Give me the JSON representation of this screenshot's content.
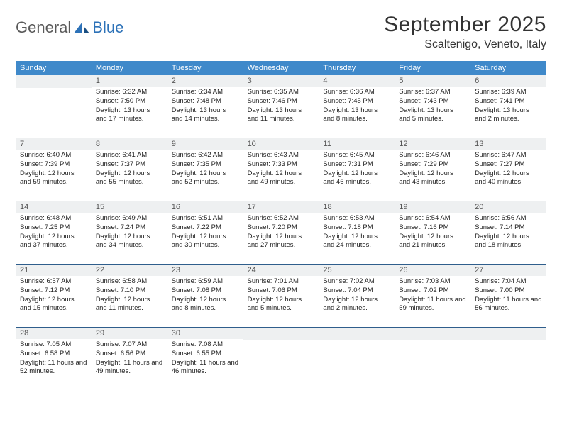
{
  "logo": {
    "text1": "General",
    "text2": "Blue"
  },
  "title": "September 2025",
  "location": "Scaltenigo, Veneto, Italy",
  "weekdays": [
    "Sunday",
    "Monday",
    "Tuesday",
    "Wednesday",
    "Thursday",
    "Friday",
    "Saturday"
  ],
  "colors": {
    "header_bg": "#3f89ca",
    "header_text": "#ffffff",
    "daynum_bg": "#eef0f1",
    "week_border": "#2f5e8c",
    "logo_general": "#5a5a5a",
    "logo_blue": "#2d72b8",
    "text": "#333333",
    "background": "#ffffff"
  },
  "fonts": {
    "title_size": 30,
    "location_size": 16,
    "weekday_size": 11,
    "daynum_size": 11,
    "body_size": 9.5
  },
  "weeks": [
    [
      null,
      {
        "n": "1",
        "sunrise": "Sunrise: 6:32 AM",
        "sunset": "Sunset: 7:50 PM",
        "daylight": "Daylight: 13 hours and 17 minutes."
      },
      {
        "n": "2",
        "sunrise": "Sunrise: 6:34 AM",
        "sunset": "Sunset: 7:48 PM",
        "daylight": "Daylight: 13 hours and 14 minutes."
      },
      {
        "n": "3",
        "sunrise": "Sunrise: 6:35 AM",
        "sunset": "Sunset: 7:46 PM",
        "daylight": "Daylight: 13 hours and 11 minutes."
      },
      {
        "n": "4",
        "sunrise": "Sunrise: 6:36 AM",
        "sunset": "Sunset: 7:45 PM",
        "daylight": "Daylight: 13 hours and 8 minutes."
      },
      {
        "n": "5",
        "sunrise": "Sunrise: 6:37 AM",
        "sunset": "Sunset: 7:43 PM",
        "daylight": "Daylight: 13 hours and 5 minutes."
      },
      {
        "n": "6",
        "sunrise": "Sunrise: 6:39 AM",
        "sunset": "Sunset: 7:41 PM",
        "daylight": "Daylight: 13 hours and 2 minutes."
      }
    ],
    [
      {
        "n": "7",
        "sunrise": "Sunrise: 6:40 AM",
        "sunset": "Sunset: 7:39 PM",
        "daylight": "Daylight: 12 hours and 59 minutes."
      },
      {
        "n": "8",
        "sunrise": "Sunrise: 6:41 AM",
        "sunset": "Sunset: 7:37 PM",
        "daylight": "Daylight: 12 hours and 55 minutes."
      },
      {
        "n": "9",
        "sunrise": "Sunrise: 6:42 AM",
        "sunset": "Sunset: 7:35 PM",
        "daylight": "Daylight: 12 hours and 52 minutes."
      },
      {
        "n": "10",
        "sunrise": "Sunrise: 6:43 AM",
        "sunset": "Sunset: 7:33 PM",
        "daylight": "Daylight: 12 hours and 49 minutes."
      },
      {
        "n": "11",
        "sunrise": "Sunrise: 6:45 AM",
        "sunset": "Sunset: 7:31 PM",
        "daylight": "Daylight: 12 hours and 46 minutes."
      },
      {
        "n": "12",
        "sunrise": "Sunrise: 6:46 AM",
        "sunset": "Sunset: 7:29 PM",
        "daylight": "Daylight: 12 hours and 43 minutes."
      },
      {
        "n": "13",
        "sunrise": "Sunrise: 6:47 AM",
        "sunset": "Sunset: 7:27 PM",
        "daylight": "Daylight: 12 hours and 40 minutes."
      }
    ],
    [
      {
        "n": "14",
        "sunrise": "Sunrise: 6:48 AM",
        "sunset": "Sunset: 7:25 PM",
        "daylight": "Daylight: 12 hours and 37 minutes."
      },
      {
        "n": "15",
        "sunrise": "Sunrise: 6:49 AM",
        "sunset": "Sunset: 7:24 PM",
        "daylight": "Daylight: 12 hours and 34 minutes."
      },
      {
        "n": "16",
        "sunrise": "Sunrise: 6:51 AM",
        "sunset": "Sunset: 7:22 PM",
        "daylight": "Daylight: 12 hours and 30 minutes."
      },
      {
        "n": "17",
        "sunrise": "Sunrise: 6:52 AM",
        "sunset": "Sunset: 7:20 PM",
        "daylight": "Daylight: 12 hours and 27 minutes."
      },
      {
        "n": "18",
        "sunrise": "Sunrise: 6:53 AM",
        "sunset": "Sunset: 7:18 PM",
        "daylight": "Daylight: 12 hours and 24 minutes."
      },
      {
        "n": "19",
        "sunrise": "Sunrise: 6:54 AM",
        "sunset": "Sunset: 7:16 PM",
        "daylight": "Daylight: 12 hours and 21 minutes."
      },
      {
        "n": "20",
        "sunrise": "Sunrise: 6:56 AM",
        "sunset": "Sunset: 7:14 PM",
        "daylight": "Daylight: 12 hours and 18 minutes."
      }
    ],
    [
      {
        "n": "21",
        "sunrise": "Sunrise: 6:57 AM",
        "sunset": "Sunset: 7:12 PM",
        "daylight": "Daylight: 12 hours and 15 minutes."
      },
      {
        "n": "22",
        "sunrise": "Sunrise: 6:58 AM",
        "sunset": "Sunset: 7:10 PM",
        "daylight": "Daylight: 12 hours and 11 minutes."
      },
      {
        "n": "23",
        "sunrise": "Sunrise: 6:59 AM",
        "sunset": "Sunset: 7:08 PM",
        "daylight": "Daylight: 12 hours and 8 minutes."
      },
      {
        "n": "24",
        "sunrise": "Sunrise: 7:01 AM",
        "sunset": "Sunset: 7:06 PM",
        "daylight": "Daylight: 12 hours and 5 minutes."
      },
      {
        "n": "25",
        "sunrise": "Sunrise: 7:02 AM",
        "sunset": "Sunset: 7:04 PM",
        "daylight": "Daylight: 12 hours and 2 minutes."
      },
      {
        "n": "26",
        "sunrise": "Sunrise: 7:03 AM",
        "sunset": "Sunset: 7:02 PM",
        "daylight": "Daylight: 11 hours and 59 minutes."
      },
      {
        "n": "27",
        "sunrise": "Sunrise: 7:04 AM",
        "sunset": "Sunset: 7:00 PM",
        "daylight": "Daylight: 11 hours and 56 minutes."
      }
    ],
    [
      {
        "n": "28",
        "sunrise": "Sunrise: 7:05 AM",
        "sunset": "Sunset: 6:58 PM",
        "daylight": "Daylight: 11 hours and 52 minutes."
      },
      {
        "n": "29",
        "sunrise": "Sunrise: 7:07 AM",
        "sunset": "Sunset: 6:56 PM",
        "daylight": "Daylight: 11 hours and 49 minutes."
      },
      {
        "n": "30",
        "sunrise": "Sunrise: 7:08 AM",
        "sunset": "Sunset: 6:55 PM",
        "daylight": "Daylight: 11 hours and 46 minutes."
      },
      null,
      null,
      null,
      null
    ]
  ]
}
